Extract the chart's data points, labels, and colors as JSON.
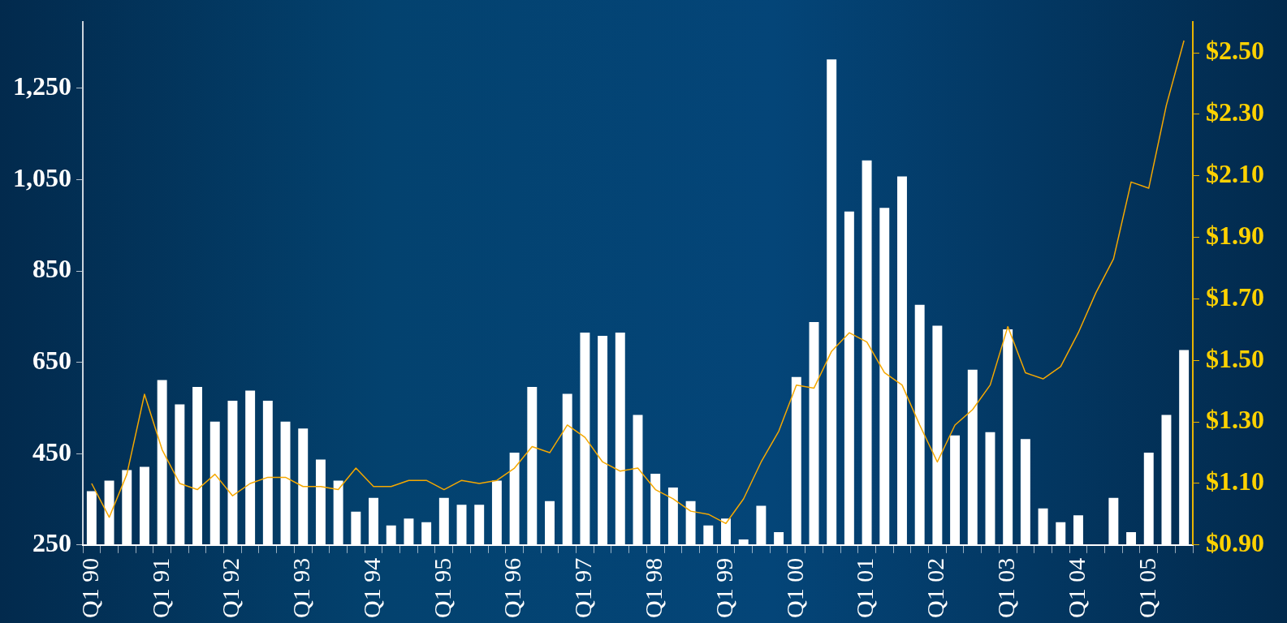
{
  "chart_data": {
    "type": "bar",
    "categories": [
      "Q1 90",
      null,
      null,
      null,
      "Q1 91",
      null,
      null,
      null,
      "Q1 92",
      null,
      null,
      null,
      "Q1 93",
      null,
      null,
      null,
      "Q1 94",
      null,
      null,
      null,
      "Q1 95",
      null,
      null,
      null,
      "Q1 96",
      null,
      null,
      null,
      "Q1 97",
      null,
      null,
      null,
      "Q1 98",
      null,
      null,
      null,
      "Q1 99",
      null,
      null,
      null,
      "Q1 00",
      null,
      null,
      null,
      "Q1 01",
      null,
      null,
      null,
      "Q1 02",
      null,
      null,
      null,
      "Q1 03",
      null,
      null,
      null,
      "Q1 04",
      null,
      null,
      null,
      "Q1 05",
      null,
      null
    ],
    "series": [
      {
        "color": "#ffffff",
        "values": [
          368,
          391,
          414,
          421,
          611,
          558,
          596,
          520,
          566,
          588,
          566,
          520,
          505,
          437,
          391,
          323,
          353,
          293,
          308,
          300,
          353,
          338,
          338,
          391,
          452,
          596,
          346,
          581,
          715,
          708,
          715,
          535,
          406,
          376,
          346,
          293,
          308,
          262,
          336,
          278,
          618,
          738,
          1313,
          980,
          1092,
          988,
          1057,
          776,
          730,
          490,
          634,
          497,
          722,
          482,
          330,
          300,
          315,
          null,
          353,
          278,
          452,
          535,
          677
        ]
      },
      {
        "type": "line",
        "axis": "y2",
        "color": "#f5a800",
        "values": [
          1.1,
          0.99,
          1.13,
          1.39,
          1.21,
          1.1,
          1.08,
          1.13,
          1.06,
          1.1,
          1.12,
          1.12,
          1.09,
          1.09,
          1.08,
          1.15,
          1.09,
          1.09,
          1.11,
          1.11,
          1.08,
          1.11,
          1.1,
          1.11,
          1.15,
          1.22,
          1.2,
          1.29,
          1.25,
          1.17,
          1.14,
          1.15,
          1.08,
          1.05,
          1.01,
          1.0,
          0.97,
          1.05,
          1.17,
          1.27,
          1.42,
          1.41,
          1.53,
          1.59,
          1.56,
          1.46,
          1.42,
          1.29,
          1.17,
          1.29,
          1.34,
          1.42,
          1.61,
          1.46,
          1.44,
          1.48,
          1.59,
          1.72,
          1.83,
          2.08,
          2.06,
          2.33,
          2.54
        ]
      }
    ],
    "ylim": [
      250,
      1395
    ],
    "yticks": [
      {
        "value": 250,
        "label": "250"
      },
      {
        "value": 450,
        "label": "450"
      },
      {
        "value": 650,
        "label": "650"
      },
      {
        "value": 850,
        "label": "850"
      },
      {
        "value": 1050,
        "label": "1,050"
      },
      {
        "value": 1250,
        "label": "1,250"
      }
    ],
    "y2lim": [
      0.9,
      2.6
    ],
    "y2ticks": [
      {
        "value": 0.9,
        "label": "$0.90"
      },
      {
        "value": 1.1,
        "label": "$1.10"
      },
      {
        "value": 1.3,
        "label": "$1.30"
      },
      {
        "value": 1.5,
        "label": "$1.50"
      },
      {
        "value": 1.7,
        "label": "$1.70"
      },
      {
        "value": 1.9,
        "label": "$1.90"
      },
      {
        "value": 2.1,
        "label": "$2.10"
      },
      {
        "value": 2.3,
        "label": "$2.30"
      },
      {
        "value": 2.5,
        "label": "$2.50"
      }
    ],
    "grid": false,
    "legend": false,
    "marker": "none"
  }
}
